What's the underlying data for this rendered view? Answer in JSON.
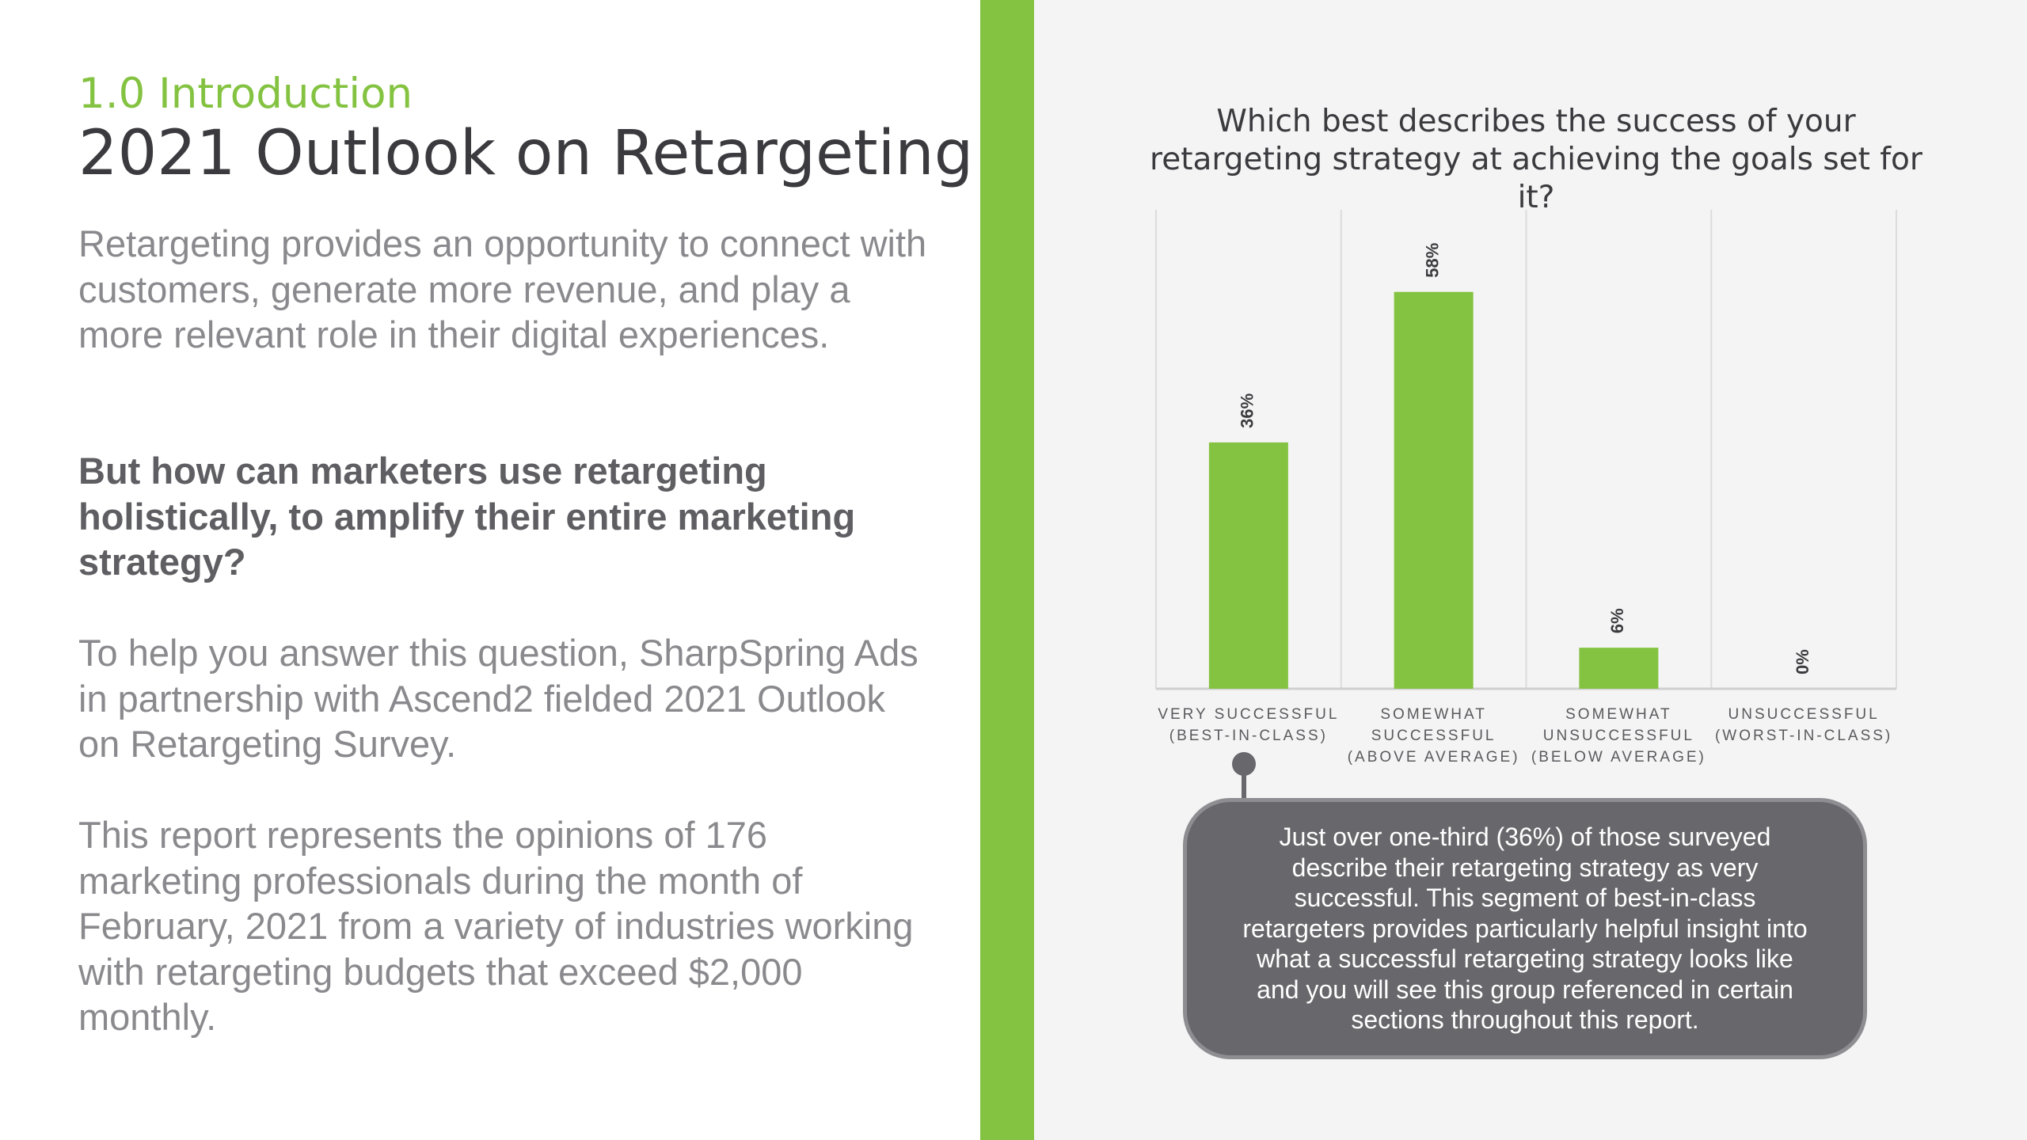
{
  "left": {
    "section": "1.0 Introduction",
    "title": "2021 Outlook on Retargeting",
    "paragraph1": "Retargeting provides an opportunity to connect with customers, generate more revenue, and play a more relevant role in their digital experiences.",
    "question": "But how can marketers use retargeting holistically, to amplify their entire marketing strategy?",
    "paragraph2": "To help you answer this question, SharpSpring Ads in partnership with Ascend2 fielded 2021 Outlook on Retargeting Survey.",
    "paragraph3": "This report represents the opinions of 176 marketing professionals during the month of February, 2021 from a variety of industries working with retargeting budgets that exceed $2,000 monthly."
  },
  "callout": {
    "text": "Just over one-third (36%) of those surveyed describe their retargeting strategy as very successful. This segment of best-in-class retargeters provides particularly helpful insight into what a successful retargeting strategy looks like and you will see this group referenced in certain sections throughout this report."
  },
  "colors": {
    "accent": "#84c341",
    "callout": "#68686c",
    "text_dark": "#3b3b3f",
    "text_light": "#8a8a8e"
  },
  "chart_data": {
    "type": "bar",
    "title": "Which best describes the success of your retargeting strategy at achieving the goals set for it?",
    "categories": [
      [
        "VERY SUCCESSFUL",
        "(BEST-IN-CLASS)"
      ],
      [
        "SOMEWHAT",
        "SUCCESSFUL",
        "(ABOVE AVERAGE)"
      ],
      [
        "SOMEWHAT",
        "UNSUCCESSFUL",
        "(BELOW AVERAGE)"
      ],
      [
        "UNSUCCESSFUL",
        "(WORST-IN-CLASS)"
      ]
    ],
    "values": [
      36,
      58,
      6,
      0
    ],
    "value_labels": [
      "36%",
      "58%",
      "6%",
      "0%"
    ],
    "ylim": [
      0,
      70
    ],
    "grid": "vertical separators",
    "legend": "none"
  }
}
